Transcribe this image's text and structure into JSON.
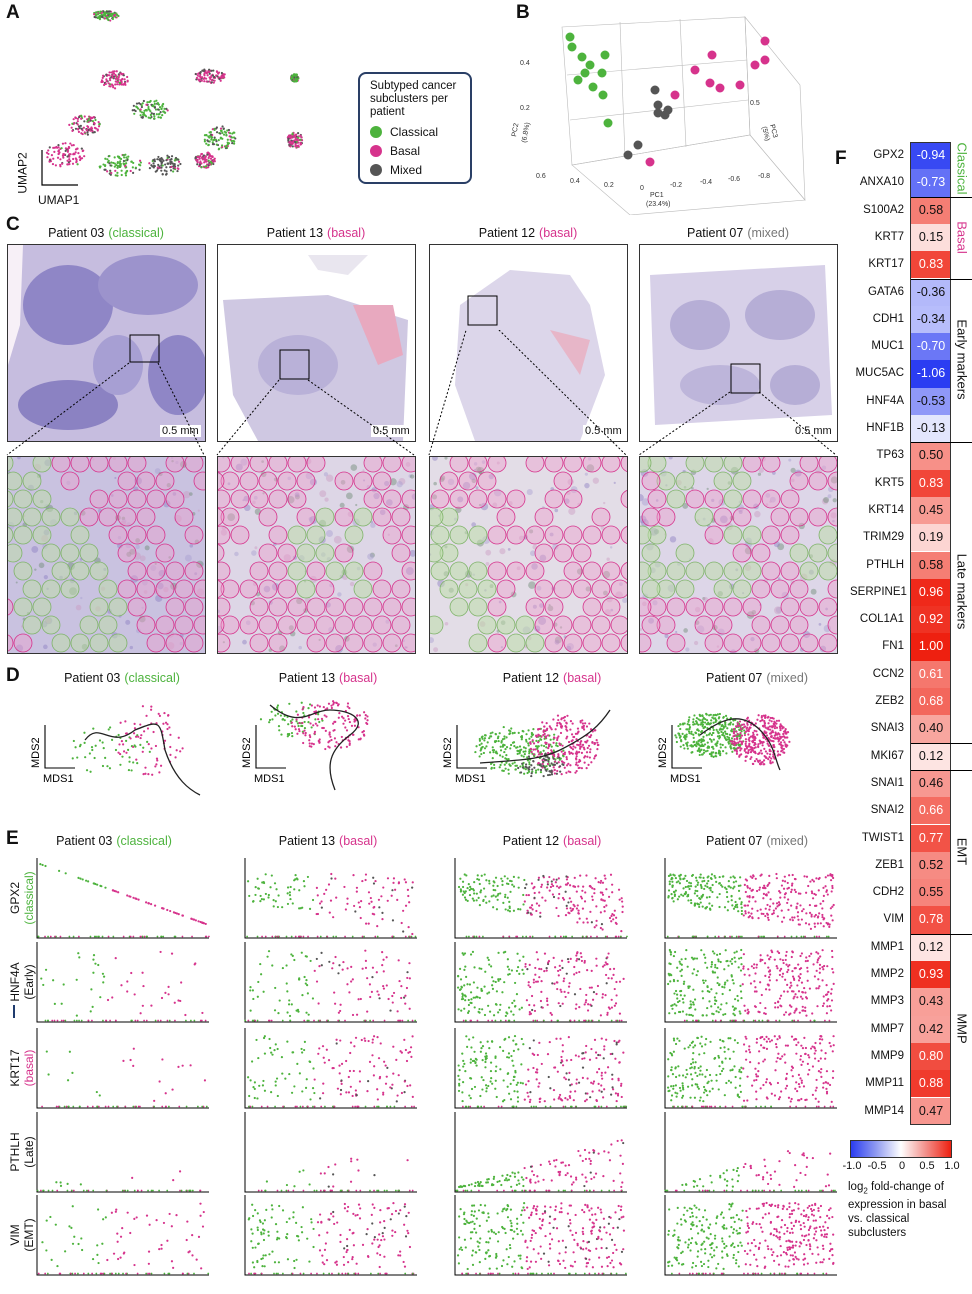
{
  "panel_labels": {
    "a": "A",
    "b": "B",
    "c": "C",
    "d": "D",
    "e": "E",
    "f": "F"
  },
  "umap": {
    "xlabel": "UMAP1",
    "ylabel": "UMAP2"
  },
  "legend": {
    "title": "Subtyped cancer subclusters per patient",
    "items": [
      {
        "label": "Classical",
        "color": "#4db33d"
      },
      {
        "label": "Basal",
        "color": "#d6338c"
      },
      {
        "label": "Mixed",
        "color": "#555555"
      }
    ]
  },
  "pca": {
    "pc1": "PC1",
    "pc1_pct": "(23.4%)",
    "pc2": "PC2",
    "pc2_pct": "(6.8%)",
    "pc3": "PC3",
    "pc3_pct": "(5%)",
    "ticks_x": [
      "0.6",
      "0.4",
      "0.2",
      "0",
      "-0.2",
      "-0.4",
      "-0.6",
      "-0.8"
    ],
    "ticks_y": [
      "0.4",
      "0.2",
      "0",
      "-0.2"
    ],
    "tick_z": "0.5"
  },
  "colors": {
    "classical": "#4db33d",
    "basal": "#d6338c",
    "mixed": "#555555"
  },
  "patients": [
    {
      "name": "Patient 03",
      "subtype": "(classical)",
      "subtype_color": "#4db33d"
    },
    {
      "name": "Patient 13",
      "subtype": "(basal)",
      "subtype_color": "#d6338c"
    },
    {
      "name": "Patient 12",
      "subtype": "(basal)",
      "subtype_color": "#d6338c"
    },
    {
      "name": "Patient 07",
      "subtype": "(mixed)",
      "subtype_color": "#777777"
    }
  ],
  "scalebar": "0.5 mm",
  "mds": {
    "xlabel": "MDS1",
    "ylabel": "MDS2"
  },
  "panel_e_rows": [
    {
      "gene": "GPX2",
      "sub": "(classical)",
      "sub_color": "#4db33d"
    },
    {
      "gene": "HNF4A",
      "sub": "(Early)",
      "sub_color": "#111111"
    },
    {
      "gene": "KRT17",
      "sub": "(basal)",
      "sub_color": "#d6338c"
    },
    {
      "gene": "PTHLH",
      "sub": "(Late)",
      "sub_color": "#111111"
    },
    {
      "gene": "VIM",
      "sub": "(EMT)",
      "sub_color": "#111111"
    }
  ],
  "heatmap": {
    "genes": [
      {
        "gene": "GPX2",
        "value": "-0.94"
      },
      {
        "gene": "ANXA10",
        "value": "-0.73"
      },
      {
        "gene": "S100A2",
        "value": "0.58"
      },
      {
        "gene": "KRT7",
        "value": "0.15"
      },
      {
        "gene": "KRT17",
        "value": "0.83"
      },
      {
        "gene": "GATA6",
        "value": "-0.36"
      },
      {
        "gene": "CDH1",
        "value": "-0.34"
      },
      {
        "gene": "MUC1",
        "value": "-0.70"
      },
      {
        "gene": "MUC5AC",
        "value": "-1.06"
      },
      {
        "gene": "HNF4A",
        "value": "-0.53"
      },
      {
        "gene": "HNF1B",
        "value": "-0.13"
      },
      {
        "gene": "TP63",
        "value": "0.50"
      },
      {
        "gene": "KRT5",
        "value": "0.83"
      },
      {
        "gene": "KRT14",
        "value": "0.45"
      },
      {
        "gene": "TRIM29",
        "value": "0.19"
      },
      {
        "gene": "PTHLH",
        "value": "0.58"
      },
      {
        "gene": "SERPINE1",
        "value": "0.96"
      },
      {
        "gene": "COL1A1",
        "value": "0.92"
      },
      {
        "gene": "FN1",
        "value": "1.00"
      },
      {
        "gene": "CCN2",
        "value": "0.61"
      },
      {
        "gene": "ZEB2",
        "value": "0.68"
      },
      {
        "gene": "SNAI3",
        "value": "0.40"
      },
      {
        "gene": "MKI67",
        "value": "0.12"
      },
      {
        "gene": "SNAI1",
        "value": "0.46"
      },
      {
        "gene": "SNAI2",
        "value": "0.66"
      },
      {
        "gene": "TWIST1",
        "value": "0.77"
      },
      {
        "gene": "ZEB1",
        "value": "0.52"
      },
      {
        "gene": "CDH2",
        "value": "0.55"
      },
      {
        "gene": "VIM",
        "value": "0.78"
      },
      {
        "gene": "MMP1",
        "value": "0.12"
      },
      {
        "gene": "MMP2",
        "value": "0.93"
      },
      {
        "gene": "MMP3",
        "value": "0.43"
      },
      {
        "gene": "MMP7",
        "value": "0.42"
      },
      {
        "gene": "MMP9",
        "value": "0.80"
      },
      {
        "gene": "MMP11",
        "value": "0.88"
      },
      {
        "gene": "MMP14",
        "value": "0.47"
      }
    ],
    "groups": [
      {
        "label": "Classical",
        "color": "#4db33d"
      },
      {
        "label": "Basal",
        "color": "#d6338c"
      },
      {
        "label": "Early markers",
        "color": "#111111"
      },
      {
        "label": "Late markers",
        "color": "#111111"
      },
      {
        "label": "EMT",
        "color": "#111111"
      },
      {
        "label": "MMP",
        "color": "#111111"
      }
    ],
    "colorbar_ticks": [
      "-1.0",
      "-0.5",
      "0",
      "0.5",
      "1.0"
    ],
    "colorbar_label_1": "log",
    "colorbar_label_sub": "2",
    "colorbar_label_2": " fold-change of expression in basal vs. classical subclusters"
  }
}
